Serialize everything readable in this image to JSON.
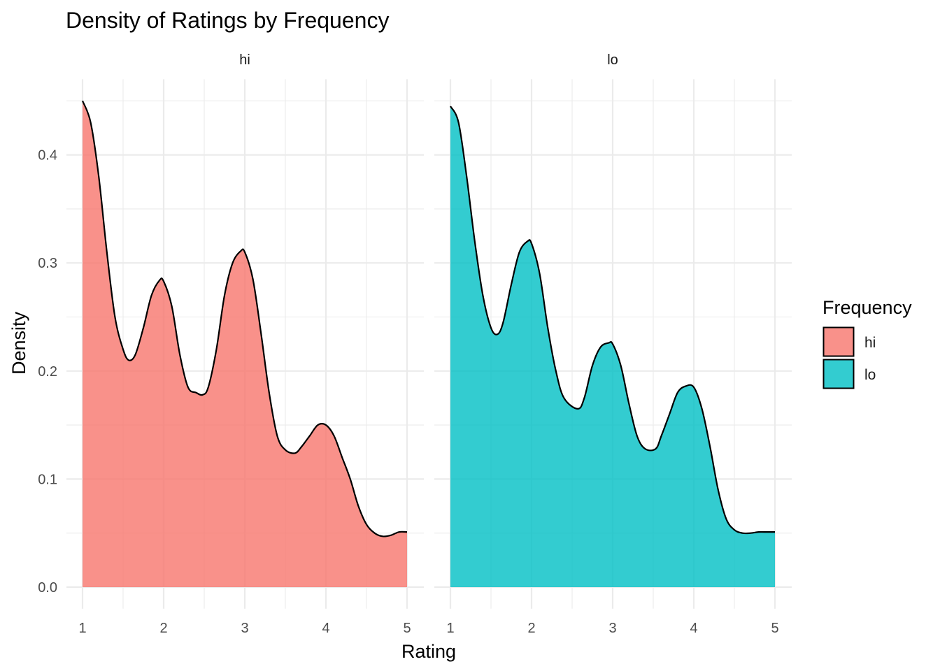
{
  "chart_data": {
    "type": "area",
    "title": "Density of Ratings by Frequency",
    "xlabel": "Rating",
    "ylabel": "Density",
    "xlim": [
      0.9,
      5.03
    ],
    "ylim": [
      -0.02,
      0.47
    ],
    "x_ticks": [
      "1",
      "2",
      "3",
      "4",
      "5"
    ],
    "y_ticks": [
      "0.0",
      "0.1",
      "0.2",
      "0.3",
      "0.4"
    ],
    "grid": true,
    "facets": [
      "hi",
      "lo"
    ],
    "legend": {
      "title": "Frequency",
      "position": "right",
      "entries": [
        {
          "label": "hi",
          "color": "#F8766D"
        },
        {
          "label": "lo",
          "color": "#00BFC4"
        }
      ]
    },
    "series": [
      {
        "name": "hi",
        "color": "#F8766D",
        "x": [
          1.0,
          1.1,
          1.2,
          1.3,
          1.4,
          1.5,
          1.57,
          1.65,
          1.75,
          1.85,
          1.95,
          2.0,
          2.1,
          2.2,
          2.3,
          2.4,
          2.48,
          2.55,
          2.65,
          2.75,
          2.85,
          2.95,
          3.0,
          3.1,
          3.2,
          3.3,
          3.4,
          3.5,
          3.62,
          3.7,
          3.8,
          3.9,
          4.0,
          4.1,
          4.2,
          4.3,
          4.4,
          4.5,
          4.6,
          4.7,
          4.8,
          4.9,
          5.0
        ],
        "y": [
          0.45,
          0.43,
          0.38,
          0.31,
          0.25,
          0.22,
          0.21,
          0.215,
          0.24,
          0.27,
          0.284,
          0.283,
          0.26,
          0.215,
          0.185,
          0.18,
          0.178,
          0.185,
          0.22,
          0.27,
          0.3,
          0.311,
          0.31,
          0.285,
          0.235,
          0.18,
          0.14,
          0.127,
          0.124,
          0.13,
          0.14,
          0.15,
          0.15,
          0.14,
          0.12,
          0.1,
          0.075,
          0.058,
          0.05,
          0.047,
          0.048,
          0.051,
          0.051
        ]
      },
      {
        "name": "lo",
        "color": "#00BFC4",
        "x": [
          1.0,
          1.1,
          1.2,
          1.3,
          1.4,
          1.5,
          1.58,
          1.65,
          1.75,
          1.85,
          1.95,
          2.0,
          2.1,
          2.2,
          2.3,
          2.4,
          2.57,
          2.65,
          2.75,
          2.85,
          2.95,
          3.0,
          3.1,
          3.2,
          3.3,
          3.4,
          3.53,
          3.6,
          3.7,
          3.8,
          3.9,
          4.0,
          4.1,
          4.2,
          4.3,
          4.4,
          4.5,
          4.6,
          4.7,
          4.8,
          4.9,
          5.0
        ],
        "y": [
          0.445,
          0.43,
          0.38,
          0.32,
          0.27,
          0.24,
          0.234,
          0.245,
          0.28,
          0.31,
          0.32,
          0.318,
          0.29,
          0.24,
          0.2,
          0.175,
          0.165,
          0.175,
          0.205,
          0.222,
          0.226,
          0.225,
          0.205,
          0.17,
          0.14,
          0.128,
          0.128,
          0.14,
          0.16,
          0.18,
          0.186,
          0.185,
          0.165,
          0.13,
          0.09,
          0.063,
          0.053,
          0.05,
          0.05,
          0.051,
          0.051,
          0.051
        ]
      }
    ]
  }
}
